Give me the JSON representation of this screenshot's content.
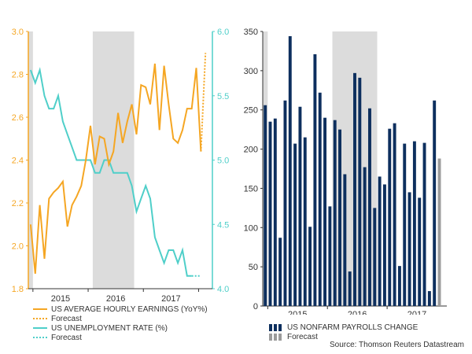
{
  "colors": {
    "earnings": "#F5A623",
    "unemployment": "#4FCFC9",
    "payrolls": "#0D2F5E",
    "forecast_bar": "#9B9B9B",
    "shade": "#DCDCDC",
    "axis_text_left": "#F5A623",
    "axis_text_right": "#4FCFC9",
    "tick_text": "#333333"
  },
  "chart_data": [
    {
      "type": "line",
      "title": "",
      "x_tick_labels": [
        "2015",
        "2016",
        "2017"
      ],
      "y_left": {
        "ylim": [
          1.8,
          3.0
        ],
        "ticks": [
          "1.8",
          "2.0",
          "2.2",
          "2.4",
          "2.6",
          "2.8",
          "3.0"
        ]
      },
      "y_right": {
        "ylim": [
          4.0,
          6.0
        ],
        "ticks": [
          "4.0",
          "4.5",
          "5.0",
          "5.5",
          "6.0"
        ]
      },
      "shaded_regions": [
        [
          0,
          1
        ],
        [
          14,
          23
        ]
      ],
      "series": [
        {
          "name": "US AVERAGE HOURLY EARNINGS (YoY%)",
          "axis": "left",
          "values": [
            2.1,
            1.87,
            2.19,
            1.94,
            2.22,
            2.25,
            2.27,
            2.3,
            2.09,
            2.19,
            2.23,
            2.28,
            2.4,
            2.56,
            2.38,
            2.51,
            2.5,
            2.38,
            2.44,
            2.62,
            2.48,
            2.58,
            2.66,
            2.52,
            2.75,
            2.74,
            2.66,
            2.85,
            2.54,
            2.84,
            2.66,
            2.5,
            2.48,
            2.54,
            2.64,
            2.64,
            2.83,
            2.44
          ]
        },
        {
          "name": "Forecast",
          "axis": "left",
          "forecast_start": 37,
          "values": [
            2.44,
            2.9
          ]
        },
        {
          "name": "US UNEMPLOYMENT RATE (%)",
          "axis": "right",
          "values": [
            5.7,
            5.6,
            5.7,
            5.5,
            5.4,
            5.4,
            5.5,
            5.3,
            5.2,
            5.1,
            5.0,
            5.0,
            5.0,
            5.0,
            4.9,
            4.9,
            5.0,
            5.0,
            4.9,
            4.9,
            4.9,
            4.9,
            4.8,
            4.6,
            4.7,
            4.8,
            4.7,
            4.4,
            4.3,
            4.2,
            4.3,
            4.3,
            4.2,
            4.3,
            4.1,
            4.1
          ]
        },
        {
          "name": "Forecast",
          "axis": "right",
          "forecast_start": 35,
          "values": [
            4.1,
            4.1,
            4.1
          ]
        }
      ],
      "legend": [
        "US AVERAGE HOURLY EARNINGS (YoY%)",
        "Forecast",
        "US UNEMPLOYMENT RATE (%)",
        "Forecast"
      ]
    },
    {
      "type": "bar",
      "title": "",
      "x_tick_labels": [
        "2015",
        "2016",
        "2017"
      ],
      "ylim": [
        0,
        350
      ],
      "y_ticks": [
        "0",
        "50",
        "100",
        "150",
        "200",
        "250",
        "300",
        "350"
      ],
      "shaded_regions": [
        [
          0,
          1
        ],
        [
          14,
          23
        ]
      ],
      "values": [
        256,
        235,
        239,
        87,
        262,
        344,
        207,
        254,
        215,
        101,
        321,
        272,
        240,
        127,
        237,
        225,
        168,
        44,
        297,
        291,
        177,
        252,
        125,
        165,
        155,
        226,
        233,
        51,
        207,
        145,
        210,
        138,
        208,
        19,
        262
      ],
      "forecast": {
        "index": 35,
        "value": 188
      },
      "legend": [
        "US NONFARM PAYROLLS CHANGE",
        "Forecast"
      ]
    }
  ],
  "legend_left": {
    "earnings": "US AVERAGE HOURLY EARNINGS (YoY%)",
    "earnings_forecast": "Forecast",
    "unemployment": "US UNEMPLOYMENT RATE (%)",
    "unemployment_forecast": "Forecast"
  },
  "legend_right": {
    "payrolls": "US NONFARM PAYROLLS CHANGE",
    "forecast": "Forecast"
  },
  "source": "Source: Thomson Reuters Datastream"
}
